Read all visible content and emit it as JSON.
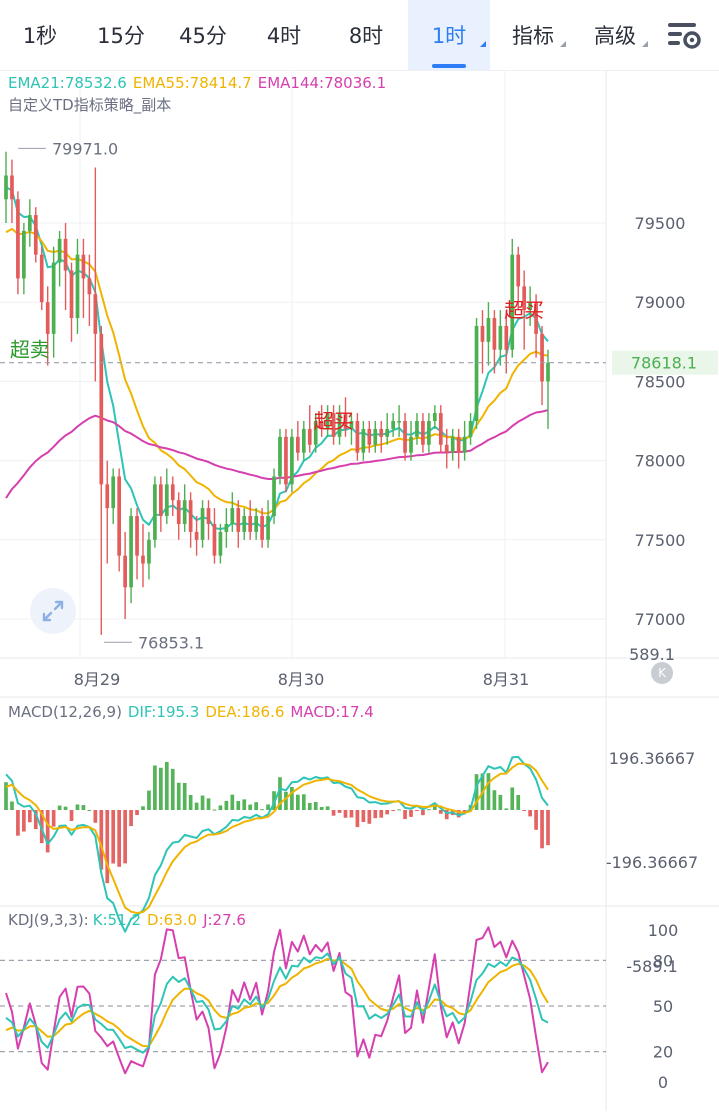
{
  "tabs": [
    {
      "label": "1秒"
    },
    {
      "label": "15分"
    },
    {
      "label": "45分"
    },
    {
      "label": "4时"
    },
    {
      "label": "8时"
    },
    {
      "label": "1时",
      "active": true
    },
    {
      "label": "指标",
      "dropdown": true
    },
    {
      "label": "高级",
      "dropdown": true
    }
  ],
  "settings_icon": "chart-settings-icon",
  "colors": {
    "up": "#4caf50",
    "down": "#e35b5b",
    "ema21": "#2ec4b6",
    "ema55": "#f0b400",
    "ema144": "#d63fae",
    "dif": "#2ec4b6",
    "dea": "#f0b400",
    "k": "#2ec4b6",
    "d": "#f0b400",
    "j": "#d63fae",
    "grid": "#eef0f3"
  },
  "chart_data": [
    {
      "type": "candlestick",
      "title": "",
      "indicator_labels": {
        "ema21": "EMA21:78532.6",
        "ema55": "EMA55:78414.7",
        "ema144": "EMA144:78036.1",
        "strategy": "自定义TD指标策略_副本"
      },
      "y_ticks": [
        79500,
        79000,
        78500,
        78000,
        77500,
        77000
      ],
      "ylim": [
        76800,
        80200
      ],
      "x_labels": [
        "8月29",
        "8月30",
        "8月31"
      ],
      "last_price": "78618.1",
      "high_label": "79971.0",
      "low_label": "76853.1",
      "high_value": 79971.0,
      "low_value": 76853.1,
      "signals": [
        {
          "text": "超卖",
          "candle": 4,
          "price": 78700,
          "color": "#2e9a2e"
        },
        {
          "text": "超买",
          "candle": 55,
          "price": 78250,
          "color": "#e02020"
        },
        {
          "text": "超买",
          "candle": 87,
          "price": 78950,
          "color": "#e02020"
        }
      ],
      "candles": [
        [
          79650,
          79800,
          79950,
          79500
        ],
        [
          79800,
          79650,
          79900,
          79500
        ],
        [
          79650,
          79150,
          79700,
          79050
        ],
        [
          79150,
          79450,
          79500,
          79050
        ],
        [
          79450,
          79550,
          79650,
          79350
        ],
        [
          79550,
          79300,
          79600,
          79250
        ],
        [
          79300,
          79000,
          79350,
          78950
        ],
        [
          79000,
          78800,
          79100,
          78600
        ],
        [
          78800,
          79250,
          79350,
          78650
        ],
        [
          79250,
          79400,
          79450,
          79100
        ],
        [
          79400,
          79200,
          79500,
          78950
        ],
        [
          79200,
          78900,
          79250,
          78750
        ],
        [
          78900,
          79300,
          79400,
          78800
        ],
        [
          79300,
          79150,
          79400,
          78900
        ],
        [
          79150,
          79050,
          79300,
          78850
        ],
        [
          79050,
          78800,
          79850,
          78500
        ],
        [
          78800,
          77850,
          78850,
          76900
        ],
        [
          77850,
          77700,
          78000,
          77350
        ],
        [
          77700,
          77900,
          77950,
          77600
        ],
        [
          77900,
          77400,
          77950,
          77300
        ],
        [
          77400,
          77200,
          77550,
          77000
        ],
        [
          77200,
          77650,
          77700,
          77100
        ],
        [
          77650,
          77400,
          77700,
          77250
        ],
        [
          77400,
          77350,
          77600,
          77200
        ],
        [
          77350,
          77500,
          77550,
          77250
        ],
        [
          77500,
          77850,
          77900,
          77450
        ],
        [
          77850,
          77650,
          77900,
          77550
        ],
        [
          77650,
          77850,
          77950,
          77600
        ],
        [
          77850,
          77750,
          77900,
          77650
        ],
        [
          77750,
          77600,
          77800,
          77500
        ],
        [
          77600,
          77750,
          77850,
          77550
        ],
        [
          77750,
          77550,
          77800,
          77450
        ],
        [
          77550,
          77500,
          77650,
          77400
        ],
        [
          77500,
          77700,
          77750,
          77450
        ],
        [
          77700,
          77600,
          77750,
          77500
        ],
        [
          77600,
          77400,
          77700,
          77350
        ],
        [
          77400,
          77550,
          77600,
          77350
        ],
        [
          77550,
          77600,
          77700,
          77450
        ],
        [
          77600,
          77700,
          77800,
          77550
        ],
        [
          77700,
          77550,
          77750,
          77450
        ],
        [
          77550,
          77650,
          77700,
          77500
        ],
        [
          77650,
          77550,
          77750,
          77500
        ],
        [
          77550,
          77650,
          77700,
          77500
        ],
        [
          77650,
          77500,
          77700,
          77450
        ],
        [
          77500,
          77650,
          77750,
          77450
        ],
        [
          77650,
          77900,
          77950,
          77600
        ],
        [
          77900,
          78150,
          78200,
          77850
        ],
        [
          78150,
          77850,
          78200,
          77800
        ],
        [
          77850,
          78150,
          78200,
          77800
        ],
        [
          78150,
          78050,
          78250,
          78000
        ],
        [
          78050,
          78200,
          78250,
          78000
        ],
        [
          78200,
          78100,
          78350,
          78050
        ],
        [
          78100,
          78250,
          78300,
          78050
        ],
        [
          78250,
          78200,
          78350,
          78150
        ],
        [
          78200,
          78300,
          78350,
          78150
        ],
        [
          78300,
          78150,
          78350,
          78100
        ],
        [
          78150,
          78300,
          78350,
          78100
        ],
        [
          78300,
          78200,
          78400,
          78150
        ],
        [
          78200,
          78250,
          78300,
          78100
        ],
        [
          78250,
          78050,
          78300,
          78000
        ],
        [
          78050,
          78200,
          78250,
          78000
        ],
        [
          78200,
          78100,
          78250,
          78050
        ],
        [
          78100,
          78200,
          78250,
          78050
        ],
        [
          78200,
          78150,
          78250,
          78050
        ],
        [
          78150,
          78200,
          78300,
          78100
        ],
        [
          78200,
          78250,
          78300,
          78150
        ],
        [
          78250,
          78250,
          78350,
          78150
        ],
        [
          78250,
          78050,
          78300,
          78000
        ],
        [
          78050,
          78150,
          78250,
          78000
        ],
        [
          78150,
          78250,
          78300,
          78100
        ],
        [
          78250,
          78100,
          78300,
          78050
        ],
        [
          78100,
          78250,
          78300,
          78050
        ],
        [
          78250,
          78300,
          78350,
          78200
        ],
        [
          78300,
          78100,
          78350,
          78050
        ],
        [
          78100,
          78050,
          78200,
          77950
        ],
        [
          78050,
          78150,
          78200,
          78000
        ],
        [
          78150,
          78050,
          78200,
          77950
        ],
        [
          78050,
          78150,
          78250,
          78000
        ],
        [
          78150,
          78250,
          78300,
          78100
        ],
        [
          78250,
          78850,
          78900,
          78200
        ],
        [
          78850,
          78750,
          78950,
          78550
        ],
        [
          78750,
          78900,
          79000,
          78600
        ],
        [
          78900,
          78700,
          78950,
          78550
        ],
        [
          78700,
          78850,
          78950,
          78600
        ],
        [
          78850,
          78700,
          78950,
          78550
        ],
        [
          78700,
          79300,
          79400,
          78650
        ],
        [
          79300,
          79100,
          79350,
          78950
        ],
        [
          79100,
          78950,
          79200,
          78700
        ],
        [
          78950,
          79000,
          79100,
          78850
        ],
        [
          79000,
          78800,
          79050,
          78650
        ],
        [
          78800,
          78500,
          78850,
          78350
        ],
        [
          78500,
          78618.1,
          78700,
          78200
        ]
      ]
    },
    {
      "type": "bar",
      "name": "MACD",
      "indicator_labels": {
        "macd": "MACD(12,26,9)",
        "dif": "DIF:195.3",
        "dea": "DEA:186.6",
        "hist": "MACD:17.4"
      },
      "y_ticks": [
        "589.1",
        "196.36667",
        "-196.36667",
        "-589.1"
      ],
      "ylim": [
        -589.1,
        589.1
      ]
    },
    {
      "type": "line",
      "name": "KDJ",
      "indicator_labels": {
        "kdj": "KDJ(9,3,3):",
        "k": "K:51.2",
        "d": "D:63.0",
        "j": "J:27.6"
      },
      "y_ticks": [
        "100",
        "80",
        "50",
        "20",
        "0"
      ],
      "ylim": [
        -5,
        105
      ]
    }
  ]
}
